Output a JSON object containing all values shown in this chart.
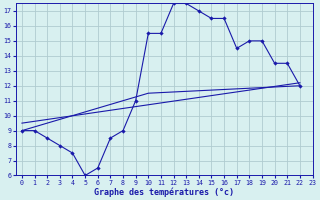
{
  "line1_x": [
    0,
    1,
    2,
    3,
    4,
    5,
    6,
    7,
    8,
    9,
    10,
    11,
    12,
    13,
    14,
    15,
    16,
    17,
    18,
    19,
    20,
    21,
    22
  ],
  "line1_y": [
    9,
    9,
    8.5,
    8,
    7.5,
    6,
    6.5,
    8.5,
    9,
    11,
    15.5,
    15.5,
    17.5,
    17.5,
    17,
    16.5,
    16.5,
    14.5,
    15,
    15,
    13.5,
    13.5,
    12
  ],
  "line2_x": [
    0,
    10,
    22
  ],
  "line2_y": [
    9,
    11.5,
    12
  ],
  "line3_x": [
    0,
    22
  ],
  "line3_y": [
    9.5,
    12.2
  ],
  "line_color": "#1a1aaa",
  "bg_color": "#d8f0f0",
  "grid_color": "#b0ccd0",
  "xlabel": "Graphe des températures (°c)",
  "xlim": [
    -0.5,
    23
  ],
  "ylim": [
    6,
    17.5
  ],
  "xticks": [
    0,
    1,
    2,
    3,
    4,
    5,
    6,
    7,
    8,
    9,
    10,
    11,
    12,
    13,
    14,
    15,
    16,
    17,
    18,
    19,
    20,
    21,
    22,
    23
  ],
  "yticks": [
    6,
    7,
    8,
    9,
    10,
    11,
    12,
    13,
    14,
    15,
    16,
    17
  ]
}
